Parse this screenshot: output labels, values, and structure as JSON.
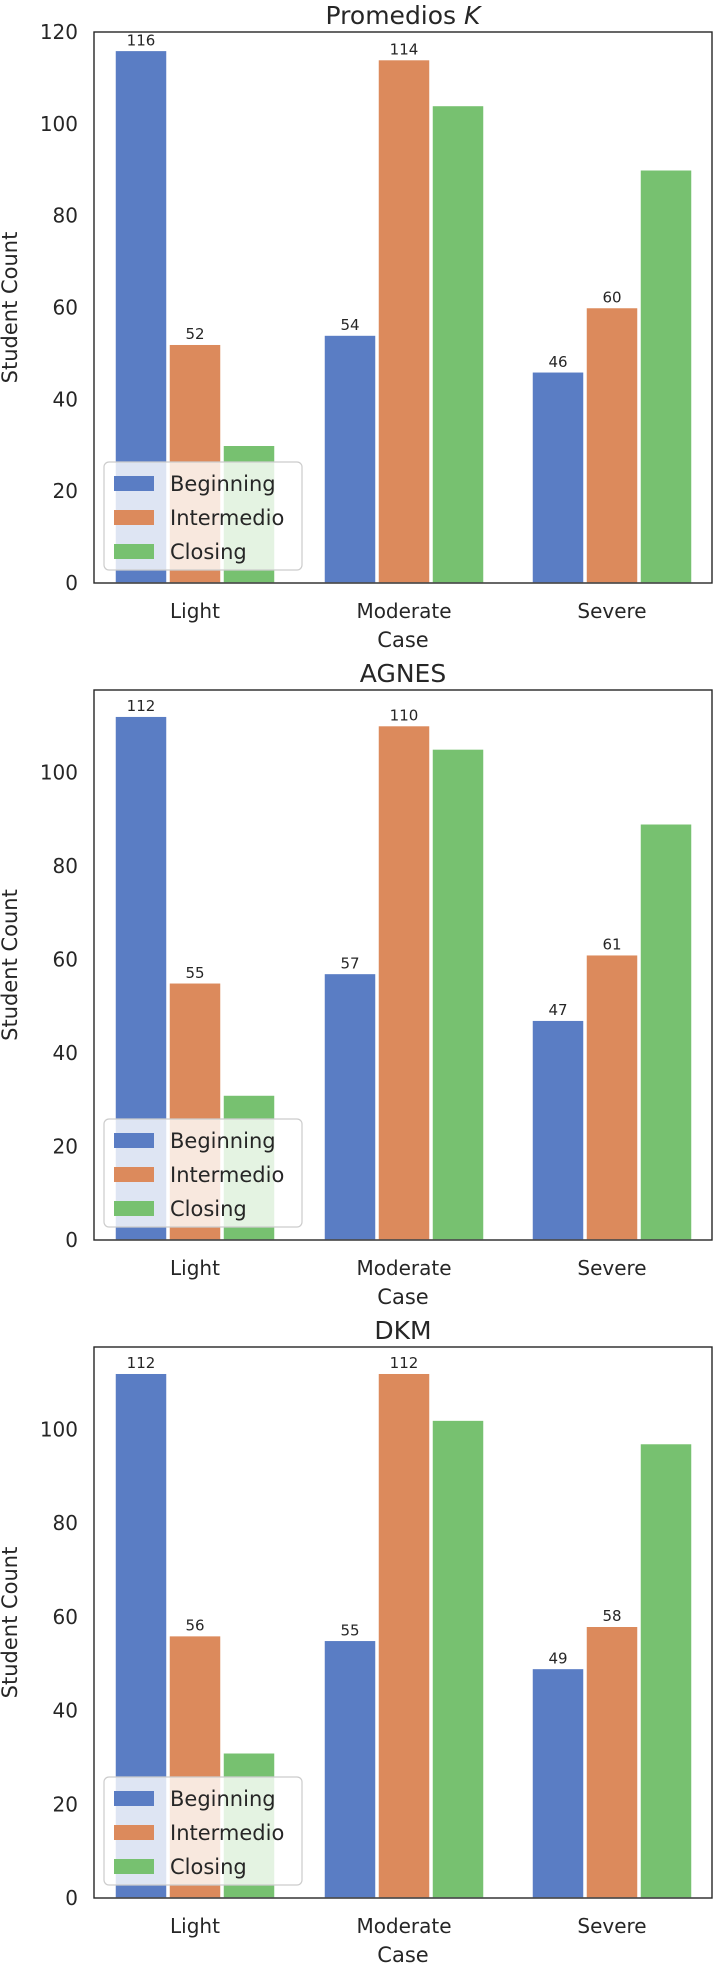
{
  "chart_data": [
    {
      "type": "bar",
      "title": "Promedios K",
      "title_main": "Promedios",
      "title_italic": "K",
      "categories": [
        "Light",
        "Moderate",
        "Severe"
      ],
      "xlabel": "Case",
      "ylabel": "Student Count",
      "ylim": [
        0,
        120
      ],
      "yticks": [
        0,
        20,
        40,
        60,
        80,
        100,
        120
      ],
      "legend_position": "lower-left",
      "series": [
        {
          "name": "Beginning",
          "values": [
            116,
            54,
            46
          ],
          "color": "#5a7dc4",
          "labeled": true
        },
        {
          "name": "Intermedio",
          "values": [
            52,
            114,
            60
          ],
          "color": "#dc8a5c",
          "labeled": true
        },
        {
          "name": "Closing",
          "values": [
            30,
            104,
            90
          ],
          "color": "#77c170",
          "labeled": false
        }
      ]
    },
    {
      "type": "bar",
      "title": "AGNES",
      "categories": [
        "Light",
        "Moderate",
        "Severe"
      ],
      "xlabel": "Case",
      "ylabel": "Student Count",
      "ylim": [
        0,
        117.6
      ],
      "yticks": [
        0,
        20,
        40,
        60,
        80,
        100
      ],
      "legend_position": "lower-left",
      "series": [
        {
          "name": "Beginning",
          "values": [
            112,
            57,
            47
          ],
          "color": "#5a7dc4",
          "labeled": true
        },
        {
          "name": "Intermedio",
          "values": [
            55,
            110,
            61
          ],
          "color": "#dc8a5c",
          "labeled": true
        },
        {
          "name": "Closing",
          "values": [
            31,
            105,
            89
          ],
          "color": "#77c170",
          "labeled": false
        }
      ]
    },
    {
      "type": "bar",
      "title": "DKM",
      "categories": [
        "Light",
        "Moderate",
        "Severe"
      ],
      "xlabel": "Case",
      "ylabel": "Student Count",
      "ylim": [
        0,
        117.6
      ],
      "yticks": [
        0,
        20,
        40,
        60,
        80,
        100
      ],
      "legend_position": "lower-left",
      "series": [
        {
          "name": "Beginning",
          "values": [
            112,
            55,
            49
          ],
          "color": "#5a7dc4",
          "labeled": true
        },
        {
          "name": "Intermedio",
          "values": [
            56,
            112,
            58
          ],
          "color": "#dc8a5c",
          "labeled": true
        },
        {
          "name": "Closing",
          "values": [
            31,
            102,
            97
          ],
          "color": "#77c170",
          "labeled": false
        }
      ]
    }
  ]
}
